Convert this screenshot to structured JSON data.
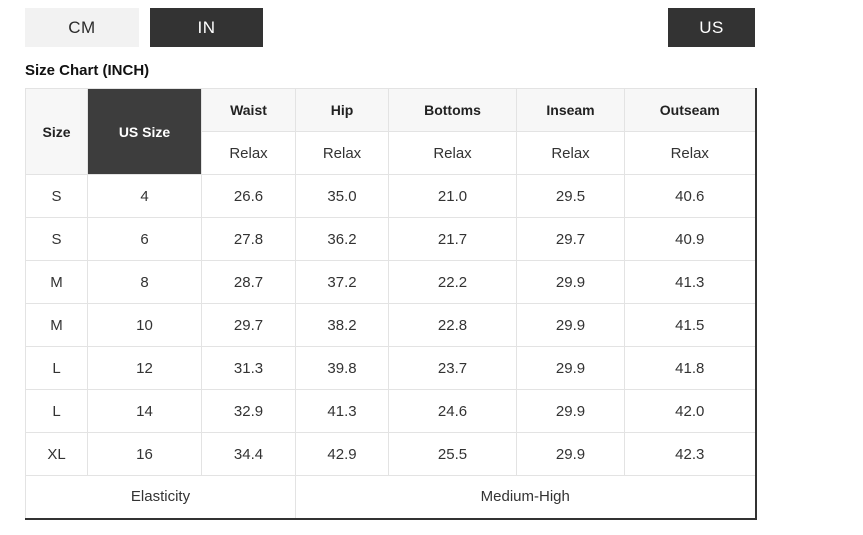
{
  "unit_toggle": {
    "cm_label": "CM",
    "in_label": "IN",
    "active_unit": "IN"
  },
  "region_toggle": {
    "us_label": "US"
  },
  "title": "Size Chart (INCH)",
  "colors": {
    "accent_dark": "#333333",
    "us_size_header_bg": "#3d3d3d",
    "header_bg": "#f7f7f7",
    "inactive_button_bg": "#f2f2f2",
    "border_light": "#e3e3e3"
  },
  "table": {
    "size_col_label": "Size",
    "us_size_col_label": "US Size",
    "measure_cols": [
      "Waist",
      "Hip",
      "Bottoms",
      "Inseam",
      "Outseam"
    ],
    "fit_row_label": "Relax",
    "col_keys": [
      "size",
      "us-size",
      "waist",
      "hip",
      "bottoms",
      "inseam",
      "outseam"
    ],
    "rows": [
      [
        "S",
        "4",
        "26.6",
        "35.0",
        "21.0",
        "29.5",
        "40.6"
      ],
      [
        "S",
        "6",
        "27.8",
        "36.2",
        "21.7",
        "29.7",
        "40.9"
      ],
      [
        "M",
        "8",
        "28.7",
        "37.2",
        "22.2",
        "29.9",
        "41.3"
      ],
      [
        "M",
        "10",
        "29.7",
        "38.2",
        "22.8",
        "29.9",
        "41.5"
      ],
      [
        "L",
        "12",
        "31.3",
        "39.8",
        "23.7",
        "29.9",
        "41.8"
      ],
      [
        "L",
        "14",
        "32.9",
        "41.3",
        "24.6",
        "29.9",
        "42.0"
      ],
      [
        "XL",
        "16",
        "34.4",
        "42.9",
        "25.5",
        "29.9",
        "42.3"
      ]
    ],
    "footer": {
      "label": "Elasticity",
      "value": "Medium-High"
    }
  }
}
